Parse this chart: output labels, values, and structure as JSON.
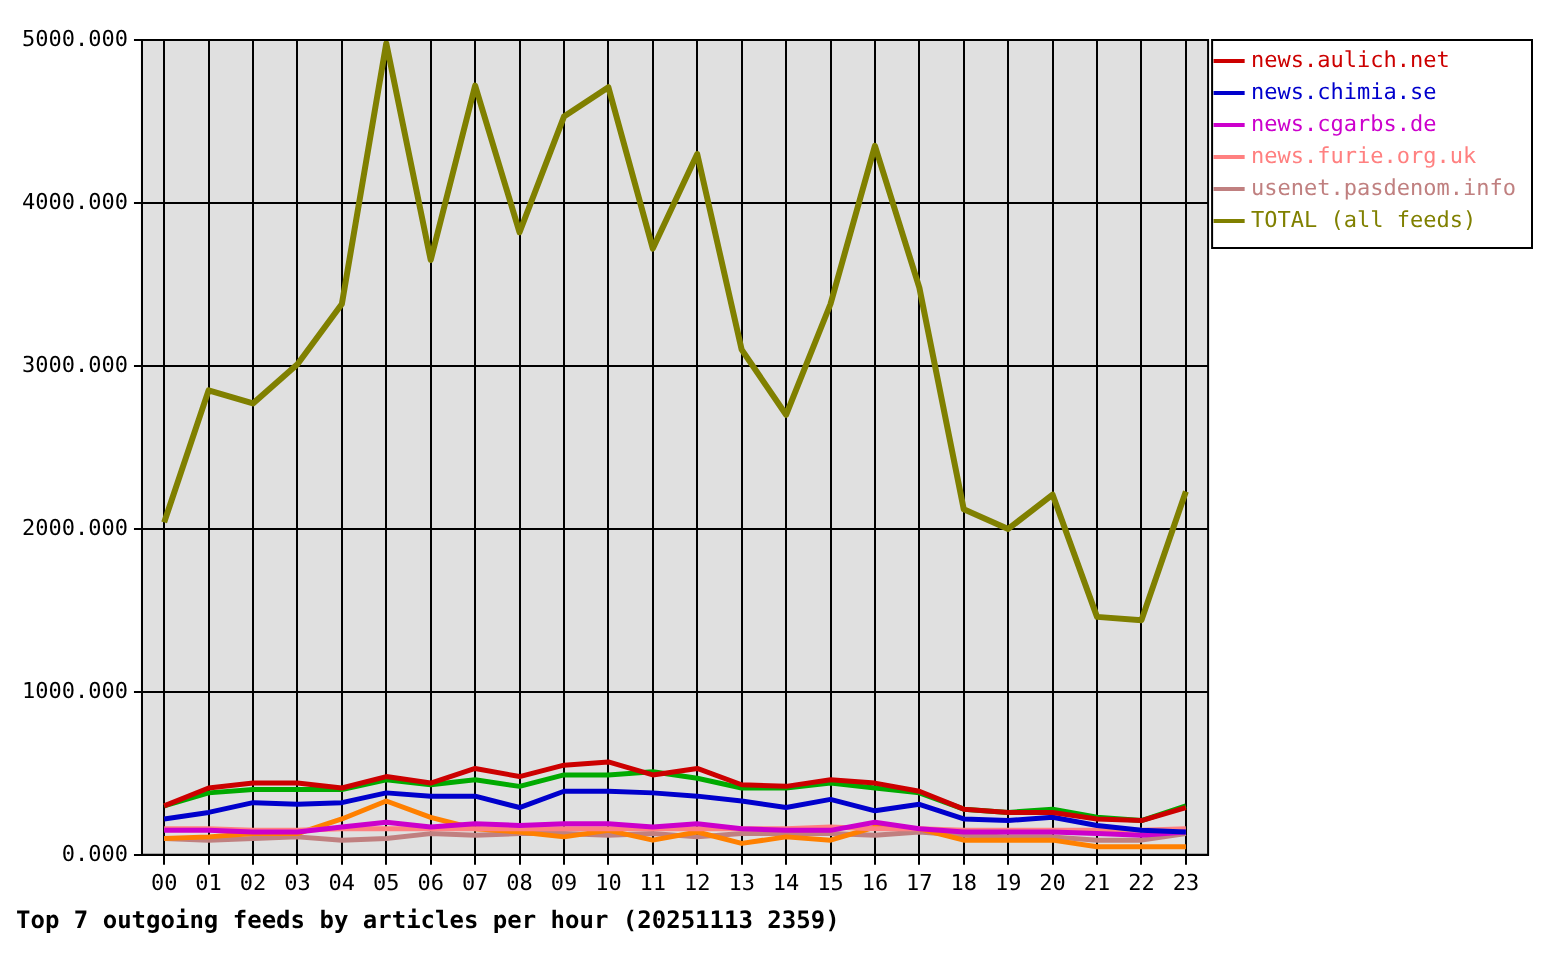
{
  "chart_data": {
    "type": "line",
    "title": "Top 7 outgoing feeds by articles per hour (20251113 2359)",
    "categories": [
      "00",
      "01",
      "02",
      "03",
      "04",
      "05",
      "06",
      "07",
      "08",
      "09",
      "10",
      "11",
      "12",
      "13",
      "14",
      "15",
      "16",
      "17",
      "18",
      "19",
      "20",
      "21",
      "22",
      "23"
    ],
    "series": [
      {
        "name": "news.aulich.net",
        "color": "#cc0000",
        "values": [
          300,
          410,
          440,
          440,
          410,
          480,
          440,
          530,
          480,
          550,
          570,
          490,
          530,
          430,
          420,
          460,
          440,
          390,
          280,
          260,
          260,
          220,
          210,
          290
        ]
      },
      {
        "color": "#00aa00",
        "values": [
          300,
          380,
          400,
          400,
          400,
          460,
          430,
          460,
          420,
          490,
          490,
          510,
          470,
          410,
          410,
          440,
          410,
          380,
          280,
          260,
          280,
          230,
          210,
          300
        ]
      },
      {
        "name": "news.chimia.se",
        "color": "#0000cc",
        "values": [
          220,
          260,
          320,
          310,
          320,
          380,
          360,
          360,
          290,
          390,
          390,
          380,
          360,
          330,
          290,
          340,
          270,
          310,
          220,
          210,
          230,
          180,
          150,
          140
        ]
      },
      {
        "name": "news.cgarbs.de",
        "color": "#cc00cc",
        "values": [
          150,
          150,
          140,
          140,
          170,
          200,
          170,
          190,
          180,
          190,
          190,
          170,
          190,
          160,
          150,
          150,
          200,
          160,
          140,
          140,
          140,
          130,
          120,
          140
        ]
      },
      {
        "name": "news.furie.org.uk",
        "color": "#ff8080",
        "values": [
          160,
          160,
          150,
          150,
          160,
          160,
          160,
          160,
          160,
          160,
          160,
          160,
          160,
          160,
          160,
          170,
          160,
          160,
          150,
          150,
          150,
          150,
          150,
          160
        ]
      },
      {
        "color": "#ff8000",
        "values": [
          100,
          110,
          130,
          130,
          220,
          330,
          230,
          160,
          140,
          110,
          150,
          90,
          140,
          70,
          110,
          90,
          170,
          160,
          90,
          90,
          90,
          50,
          50,
          50
        ]
      },
      {
        "name": "usenet.pasdenom.info",
        "color": "#c08080",
        "values": [
          100,
          90,
          100,
          110,
          90,
          100,
          130,
          120,
          130,
          130,
          120,
          130,
          110,
          130,
          130,
          130,
          120,
          140,
          120,
          110,
          110,
          90,
          90,
          130
        ]
      },
      {
        "name": "TOTAL (all feeds)",
        "color": "#808000",
        "values": [
          2040,
          2850,
          2770,
          3010,
          3380,
          4980,
          3650,
          4720,
          3820,
          4530,
          4710,
          3720,
          4300,
          3100,
          2700,
          3380,
          4350,
          3480,
          2120,
          2000,
          2210,
          1460,
          1440,
          2230
        ]
      }
    ],
    "ylim": [
      0,
      5000
    ],
    "yticks": [
      {
        "value": 0,
        "label": "0.000"
      },
      {
        "value": 1000,
        "label": "1000.000"
      },
      {
        "value": 2000,
        "label": "2000.000"
      },
      {
        "value": 3000,
        "label": "3000.000"
      },
      {
        "value": 4000,
        "label": "4000.000"
      },
      {
        "value": 5000,
        "label": "5000.000"
      }
    ],
    "grid": true,
    "legend": "top right",
    "marker": "none",
    "line_style": "solid"
  }
}
